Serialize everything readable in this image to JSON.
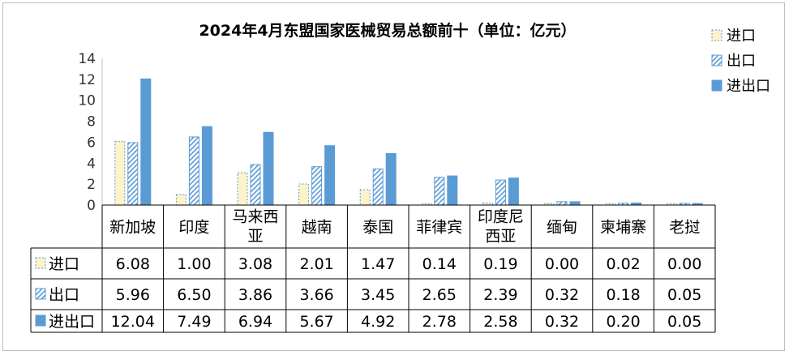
{
  "chart_data": {
    "type": "bar",
    "title": "2024年4月东盟国家医械贸易总额前十（单位：亿元）",
    "categories": [
      "新加坡",
      "印度",
      "马来西亚",
      "越南",
      "泰国",
      "菲律宾",
      "印度尼西亚",
      "缅甸",
      "柬埔寨",
      "老挝"
    ],
    "category_lines": [
      [
        "新加坡"
      ],
      [
        "印度"
      ],
      [
        "马来西",
        "亚"
      ],
      [
        "越南"
      ],
      [
        "泰国"
      ],
      [
        "菲律宾"
      ],
      [
        "印度尼",
        "西亚"
      ],
      [
        "缅甸"
      ],
      [
        "柬埔寨"
      ],
      [
        "老挝"
      ]
    ],
    "series": [
      {
        "name": "进口",
        "values": [
          6.08,
          1.0,
          3.08,
          2.01,
          1.47,
          0.14,
          0.19,
          0.0,
          0.02,
          0.0
        ],
        "labels": [
          "6.08",
          "1.00",
          "3.08",
          "2.01",
          "1.47",
          "0.14",
          "0.19",
          "0.00",
          "0.02",
          "0.00"
        ],
        "style": "dotted",
        "color": "#fdf2c8",
        "border": "#5b9bd5"
      },
      {
        "name": "出口",
        "values": [
          5.96,
          6.5,
          3.86,
          3.66,
          3.45,
          2.65,
          2.39,
          0.32,
          0.18,
          0.05
        ],
        "labels": [
          "5.96",
          "6.50",
          "3.86",
          "3.66",
          "3.45",
          "2.65",
          "2.39",
          "0.32",
          "0.18",
          "0.05"
        ],
        "style": "hatched",
        "color": "#5b9bd5",
        "border": "#5b9bd5"
      },
      {
        "name": "进出口",
        "values": [
          12.04,
          7.49,
          6.94,
          5.67,
          4.92,
          2.78,
          2.58,
          0.32,
          0.2,
          0.05
        ],
        "labels": [
          "12.04",
          "7.49",
          "6.94",
          "5.67",
          "4.92",
          "2.78",
          "2.58",
          "0.32",
          "0.20",
          "0.05"
        ],
        "style": "solid",
        "color": "#5b9bd5",
        "border": "#5b9bd5"
      }
    ],
    "y_ticks": [
      "0",
      "2",
      "4",
      "6",
      "8",
      "10",
      "12",
      "14"
    ],
    "ylim": [
      0,
      14
    ],
    "grid": false,
    "legend": "right",
    "data_table": true
  }
}
